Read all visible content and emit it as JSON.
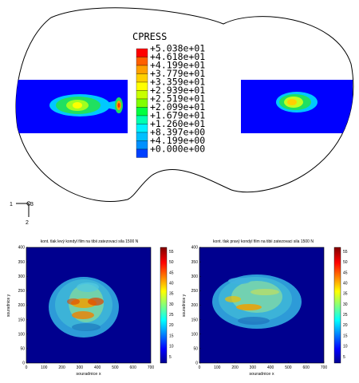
{
  "fea": {
    "title": "CPRESS",
    "legend_colors": [
      "#ff0000",
      "#ff6000",
      "#ffa000",
      "#ffd000",
      "#ffff00",
      "#c8ff00",
      "#80ff00",
      "#00ff40",
      "#00ffb0",
      "#00f0ff",
      "#00c0ff",
      "#0090ff",
      "#0040ff"
    ],
    "legend_values": [
      "+5.038e+01",
      "+4.618e+01",
      "+4.199e+01",
      "+3.779e+01",
      "+3.359e+01",
      "+2.939e+01",
      "+2.519e+01",
      "+2.099e+01",
      "+1.679e+01",
      "+1.260e+01",
      "+8.397e+00",
      "+4.199e+00",
      "+0.000e+00"
    ],
    "triad": {
      "x_label": "1",
      "y_label": "3",
      "z_label": "2"
    }
  },
  "plots": [
    {
      "title": "kont. tlak levý kondyl film na tibii zatezovaci sila 1500 N",
      "xlabel": "souradnice x",
      "ylabel": "souradnice y",
      "xticks": [
        "0",
        "100",
        "200",
        "300",
        "400",
        "500",
        "600",
        "700"
      ],
      "yticks": [
        "0",
        "50",
        "100",
        "150",
        "200",
        "250",
        "300",
        "350",
        "400"
      ],
      "cticks": [
        "5",
        "10",
        "15",
        "20",
        "25",
        "30",
        "35",
        "40",
        "45",
        "50",
        "55"
      ]
    },
    {
      "title": "kont. tlak pravý kondyl film na tibii zatezovaci sila 1500 N",
      "xlabel": "souradnice x",
      "ylabel": "souradnice y",
      "xticks": [
        "0",
        "100",
        "200",
        "300",
        "400",
        "500",
        "600",
        "700"
      ],
      "yticks": [
        "0",
        "50",
        "100",
        "150",
        "200",
        "250",
        "300",
        "350",
        "400"
      ],
      "cticks": [
        "5",
        "10",
        "15",
        "20",
        "25",
        "30",
        "35",
        "40",
        "45",
        "50",
        "55"
      ]
    }
  ]
}
